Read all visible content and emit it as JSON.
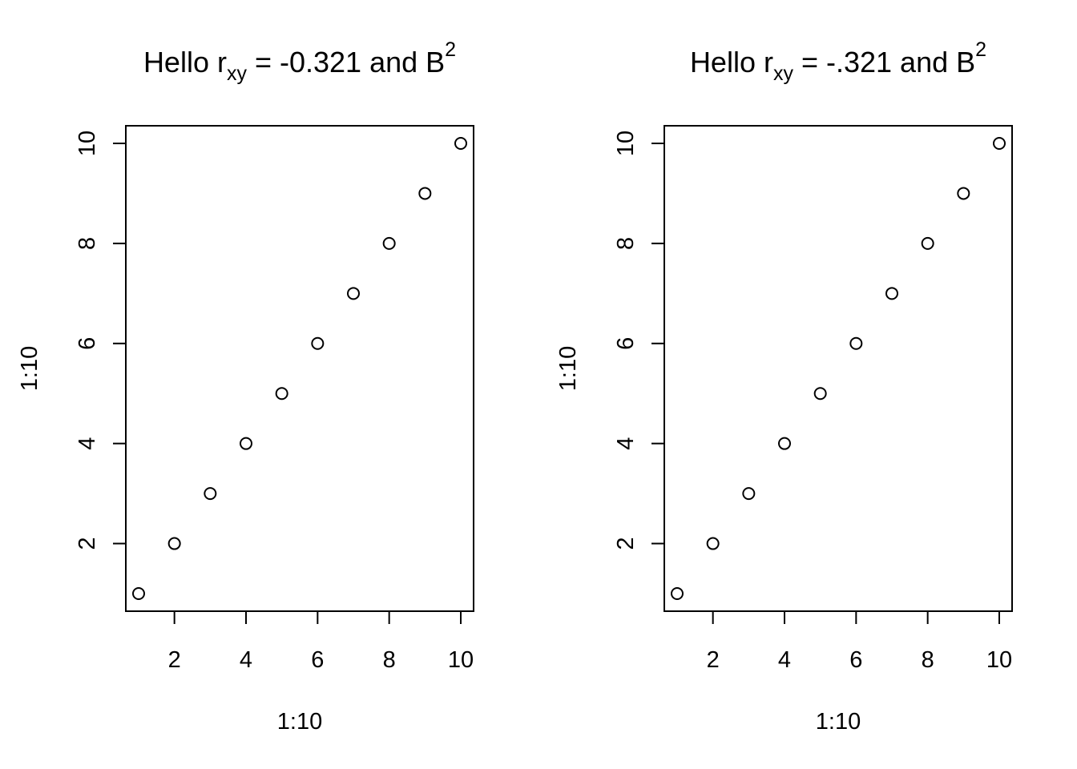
{
  "chart_data": [
    {
      "type": "scatter",
      "title_parts": {
        "prefix": "Hello r",
        "subscript": "xy",
        "middle": " = -0.321 and B",
        "superscript": "2"
      },
      "xlabel": "1:10",
      "ylabel": "1:10",
      "x": [
        1,
        2,
        3,
        4,
        5,
        6,
        7,
        8,
        9,
        10
      ],
      "y": [
        1,
        2,
        3,
        4,
        5,
        6,
        7,
        8,
        9,
        10
      ],
      "xlim": [
        1,
        10
      ],
      "ylim": [
        1,
        10
      ],
      "xticks": [
        2,
        4,
        6,
        8,
        10
      ],
      "yticks": [
        2,
        4,
        6,
        8,
        10
      ],
      "marker": "open-circle",
      "grid": false,
      "legend": "none"
    },
    {
      "type": "scatter",
      "title_parts": {
        "prefix": "Hello r",
        "subscript": "xy",
        "middle": " = -.321 and B",
        "superscript": "2"
      },
      "xlabel": "1:10",
      "ylabel": "1:10",
      "x": [
        1,
        2,
        3,
        4,
        5,
        6,
        7,
        8,
        9,
        10
      ],
      "y": [
        1,
        2,
        3,
        4,
        5,
        6,
        7,
        8,
        9,
        10
      ],
      "xlim": [
        1,
        10
      ],
      "ylim": [
        1,
        10
      ],
      "xticks": [
        2,
        4,
        6,
        8,
        10
      ],
      "yticks": [
        2,
        4,
        6,
        8,
        10
      ],
      "marker": "open-circle",
      "grid": false,
      "legend": "none"
    }
  ],
  "colors": {
    "ink": "#000000",
    "background": "#ffffff"
  }
}
